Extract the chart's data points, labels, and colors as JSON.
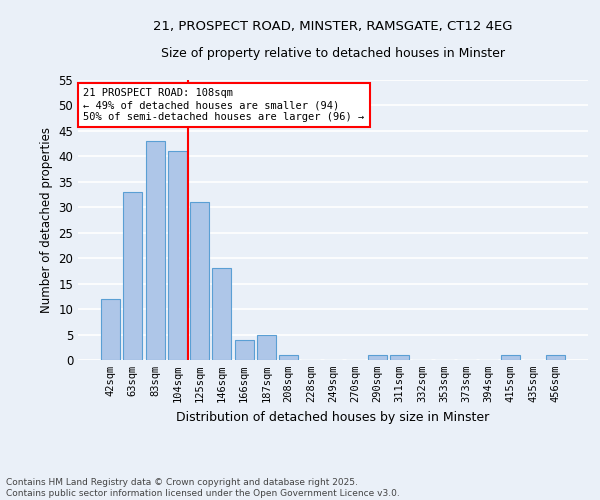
{
  "title_line1": "21, PROSPECT ROAD, MINSTER, RAMSGATE, CT12 4EG",
  "title_line2": "Size of property relative to detached houses in Minster",
  "xlabel": "Distribution of detached houses by size in Minster",
  "ylabel": "Number of detached properties",
  "categories": [
    "42sqm",
    "63sqm",
    "83sqm",
    "104sqm",
    "125sqm",
    "146sqm",
    "166sqm",
    "187sqm",
    "208sqm",
    "228sqm",
    "249sqm",
    "270sqm",
    "290sqm",
    "311sqm",
    "332sqm",
    "353sqm",
    "373sqm",
    "394sqm",
    "415sqm",
    "435sqm",
    "456sqm"
  ],
  "values": [
    12,
    33,
    43,
    41,
    31,
    18,
    4,
    5,
    1,
    0,
    0,
    0,
    1,
    1,
    0,
    0,
    0,
    0,
    1,
    0,
    1
  ],
  "bar_color": "#aec6e8",
  "bar_edge_color": "#5a9fd4",
  "vline_color": "red",
  "annotation_text": "21 PROSPECT ROAD: 108sqm\n← 49% of detached houses are smaller (94)\n50% of semi-detached houses are larger (96) →",
  "annotation_box_color": "white",
  "annotation_box_edge_color": "red",
  "ylim": [
    0,
    55
  ],
  "yticks": [
    0,
    5,
    10,
    15,
    20,
    25,
    30,
    35,
    40,
    45,
    50,
    55
  ],
  "background_color": "#eaf0f8",
  "grid_color": "white",
  "footer_line1": "Contains HM Land Registry data © Crown copyright and database right 2025.",
  "footer_line2": "Contains public sector information licensed under the Open Government Licence v3.0."
}
